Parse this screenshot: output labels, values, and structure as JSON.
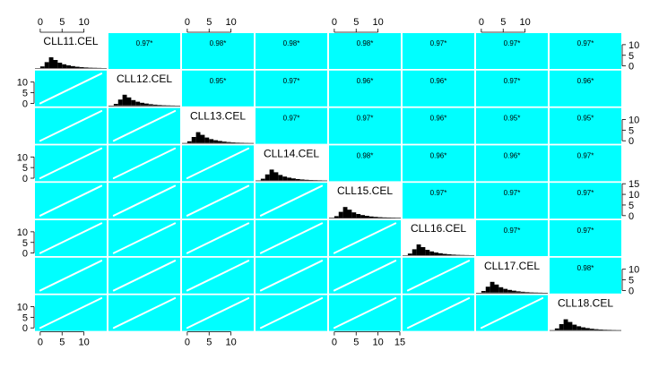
{
  "chart_data": {
    "type": "scatter-matrix",
    "variables": [
      "CLL11.CEL",
      "CLL12.CEL",
      "CLL13.CEL",
      "CLL14.CEL",
      "CLL15.CEL",
      "CLL16.CEL",
      "CLL17.CEL",
      "CLL18.CEL"
    ],
    "axis_range": [
      -1,
      15
    ],
    "panel_color": "#00ffff",
    "diagonal": {
      "type": "histogram",
      "bar_color": "#000000",
      "bins": [
        0,
        1,
        2,
        3,
        4,
        5,
        6,
        7,
        8,
        9,
        10,
        11,
        12,
        13,
        14
      ],
      "relative_heights": [
        [
          0.15,
          0.55,
          1.0,
          0.75,
          0.5,
          0.35,
          0.25,
          0.18,
          0.12,
          0.08,
          0.05,
          0.03,
          0.02,
          0.01,
          0.0
        ],
        [
          0.15,
          0.55,
          1.0,
          0.75,
          0.5,
          0.35,
          0.25,
          0.18,
          0.12,
          0.08,
          0.05,
          0.03,
          0.02,
          0.01,
          0.0
        ],
        [
          0.15,
          0.55,
          1.0,
          0.75,
          0.5,
          0.35,
          0.25,
          0.18,
          0.12,
          0.08,
          0.05,
          0.03,
          0.02,
          0.01,
          0.0
        ],
        [
          0.15,
          0.55,
          1.0,
          0.75,
          0.5,
          0.35,
          0.25,
          0.18,
          0.12,
          0.08,
          0.05,
          0.03,
          0.02,
          0.01,
          0.0
        ],
        [
          0.15,
          0.55,
          1.0,
          0.75,
          0.5,
          0.35,
          0.25,
          0.18,
          0.12,
          0.08,
          0.05,
          0.03,
          0.02,
          0.01,
          0.0
        ],
        [
          0.15,
          0.55,
          1.0,
          0.75,
          0.5,
          0.35,
          0.25,
          0.18,
          0.12,
          0.08,
          0.05,
          0.03,
          0.02,
          0.01,
          0.0
        ],
        [
          0.15,
          0.55,
          1.0,
          0.75,
          0.5,
          0.35,
          0.25,
          0.18,
          0.12,
          0.08,
          0.05,
          0.03,
          0.02,
          0.01,
          0.0
        ],
        [
          0.15,
          0.55,
          1.0,
          0.75,
          0.5,
          0.35,
          0.25,
          0.18,
          0.12,
          0.08,
          0.05,
          0.03,
          0.02,
          0.01,
          0.0
        ]
      ]
    },
    "upper": {
      "type": "correlation",
      "labels": [
        [
          "",
          "0.97*",
          "0.98*",
          "0.98*",
          "0.98*",
          "0.97*",
          "0.97*",
          "0.97*"
        ],
        [
          "",
          "",
          "0.95*",
          "0.97*",
          "0.96*",
          "0.96*",
          "0.97*",
          "0.96*"
        ],
        [
          "",
          "",
          "",
          "0.97*",
          "0.97*",
          "0.96*",
          "0.95*",
          "0.95*"
        ],
        [
          "",
          "",
          "",
          "",
          "0.98*",
          "0.96*",
          "0.96*",
          "0.97*"
        ],
        [
          "",
          "",
          "",
          "",
          "",
          "0.97*",
          "0.97*",
          "0.97*"
        ],
        [
          "",
          "",
          "",
          "",
          "",
          "",
          "0.97*",
          "0.97*"
        ],
        [
          "",
          "",
          "",
          "",
          "",
          "",
          "",
          "0.98*"
        ],
        [
          "",
          "",
          "",
          "",
          "",
          "",
          "",
          ""
        ]
      ]
    },
    "lower": {
      "type": "scatter",
      "point_color": "#ffffff",
      "line_from": [
        0,
        0
      ],
      "line_to": [
        14,
        14
      ]
    },
    "axes": {
      "top": {
        "columns": [
          0,
          2,
          4,
          6
        ],
        "ticks": [
          0,
          5,
          10
        ],
        "tick_labels": [
          "0",
          "5",
          "10"
        ]
      },
      "bottom_columns": [
        0,
        2,
        4
      ],
      "bottom": [
        {
          "ticks": [
            0,
            5,
            10
          ],
          "tick_labels": [
            "0",
            "5",
            "10"
          ]
        },
        {
          "ticks": [
            0,
            5,
            10
          ],
          "tick_labels": [
            "0",
            "5",
            "10"
          ]
        },
        {
          "ticks": [
            0,
            5,
            10,
            15
          ],
          "tick_labels": [
            "0",
            "5",
            "10",
            "15"
          ]
        }
      ],
      "left_rows": [
        1,
        3,
        5,
        7
      ],
      "left": [
        {
          "ticks": [
            0,
            5,
            10
          ],
          "tick_labels": [
            "0",
            "5",
            "10"
          ]
        },
        {
          "ticks": [
            0,
            5,
            10
          ],
          "tick_labels": [
            "0",
            "5",
            "10"
          ]
        },
        {
          "ticks": [
            0,
            5,
            10
          ],
          "tick_labels": [
            "0",
            "5",
            "10"
          ]
        },
        {
          "ticks": [
            0,
            5,
            10
          ],
          "tick_labels": [
            "0",
            "5",
            "10"
          ]
        }
      ],
      "right_rows": [
        0,
        2,
        4,
        6
      ],
      "right": [
        {
          "ticks": [
            0,
            5,
            10
          ],
          "tick_labels": [
            "0",
            "5",
            "10"
          ]
        },
        {
          "ticks": [
            0,
            5,
            10
          ],
          "tick_labels": [
            "0",
            "5",
            "10"
          ]
        },
        {
          "ticks": [
            0,
            5,
            10,
            15
          ],
          "tick_labels": [
            "0",
            "5",
            "10",
            "15"
          ]
        },
        {
          "ticks": [
            0,
            5,
            10
          ],
          "tick_labels": [
            "0",
            "5",
            "10"
          ]
        }
      ]
    }
  }
}
